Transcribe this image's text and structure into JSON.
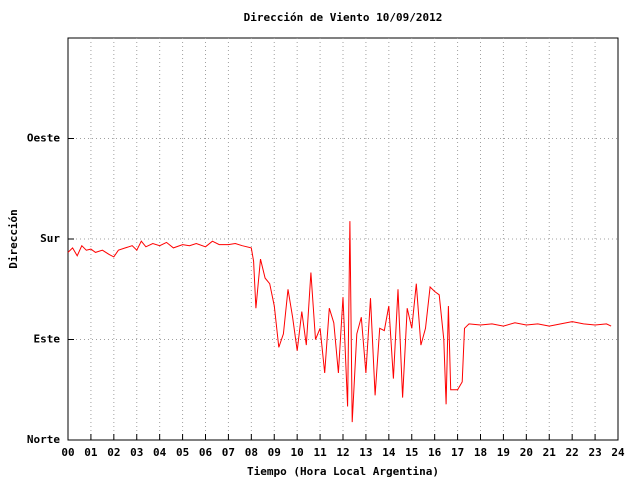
{
  "chart_data": {
    "type": "line",
    "title": "Dirección de Viento 10/09/2012",
    "x_label": "Tiempo (Hora Local Argentina)",
    "y_label": "Dirección",
    "xlim": [
      0,
      24
    ],
    "ylim": [
      0,
      360
    ],
    "xticks": [
      {
        "value": 0,
        "label": "00"
      },
      {
        "value": 1,
        "label": "01"
      },
      {
        "value": 2,
        "label": "02"
      },
      {
        "value": 3,
        "label": "03"
      },
      {
        "value": 4,
        "label": "04"
      },
      {
        "value": 5,
        "label": "05"
      },
      {
        "value": 6,
        "label": "06"
      },
      {
        "value": 7,
        "label": "07"
      },
      {
        "value": 8,
        "label": "08"
      },
      {
        "value": 9,
        "label": "09"
      },
      10,
      11,
      12,
      13,
      14,
      15,
      16,
      17,
      18,
      19,
      20,
      21,
      22,
      23,
      24
    ],
    "yticks": [
      {
        "value": 0,
        "label": "Norte"
      },
      {
        "value": 90,
        "label": "Este"
      },
      {
        "value": 180,
        "label": "Sur"
      },
      {
        "value": 270,
        "label": "Oeste"
      }
    ],
    "grid": true,
    "color": "#ff0000",
    "x": [
      0,
      0.2,
      0.4,
      0.6,
      0.8,
      1.0,
      1.2,
      1.5,
      1.8,
      2.0,
      2.2,
      2.5,
      2.8,
      3.0,
      3.2,
      3.4,
      3.7,
      4.0,
      4.3,
      4.6,
      5.0,
      5.3,
      5.6,
      6.0,
      6.3,
      6.6,
      7.0,
      7.3,
      7.6,
      8.0,
      8.1,
      8.2,
      8.4,
      8.6,
      8.8,
      9.0,
      9.2,
      9.4,
      9.6,
      9.8,
      10.0,
      10.2,
      10.4,
      10.6,
      10.8,
      11.0,
      11.2,
      11.4,
      11.6,
      11.8,
      12.0,
      12.2,
      12.3,
      12.4,
      12.6,
      12.8,
      13.0,
      13.2,
      13.4,
      13.6,
      13.8,
      14.0,
      14.2,
      14.4,
      14.6,
      14.8,
      15.0,
      15.2,
      15.4,
      15.6,
      15.8,
      16.0,
      16.2,
      16.4,
      16.5,
      16.6,
      16.7,
      17.0,
      17.2,
      17.3,
      17.5,
      18.0,
      18.5,
      19.0,
      19.5,
      20.0,
      20.5,
      21.0,
      21.5,
      22.0,
      22.5,
      23.0,
      23.5,
      23.7
    ],
    "values": [
      168,
      172,
      165,
      174,
      170,
      171,
      168,
      170,
      166,
      164,
      170,
      172,
      174,
      170,
      178,
      173,
      176,
      174,
      177,
      172,
      175,
      174,
      176,
      173,
      178,
      175,
      175,
      176,
      174,
      172,
      160,
      118,
      162,
      145,
      140,
      120,
      83,
      95,
      135,
      110,
      80,
      115,
      85,
      150,
      90,
      100,
      60,
      118,
      105,
      60,
      128,
      30,
      196,
      16,
      95,
      110,
      60,
      127,
      40,
      100,
      98,
      120,
      55,
      135,
      38,
      118,
      100,
      140,
      85,
      100,
      137,
      133,
      130,
      90,
      32,
      120,
      45,
      45,
      52,
      100,
      104,
      103,
      104,
      102,
      105,
      103,
      104,
      102,
      104,
      106,
      104,
      103,
      104,
      102
    ]
  }
}
